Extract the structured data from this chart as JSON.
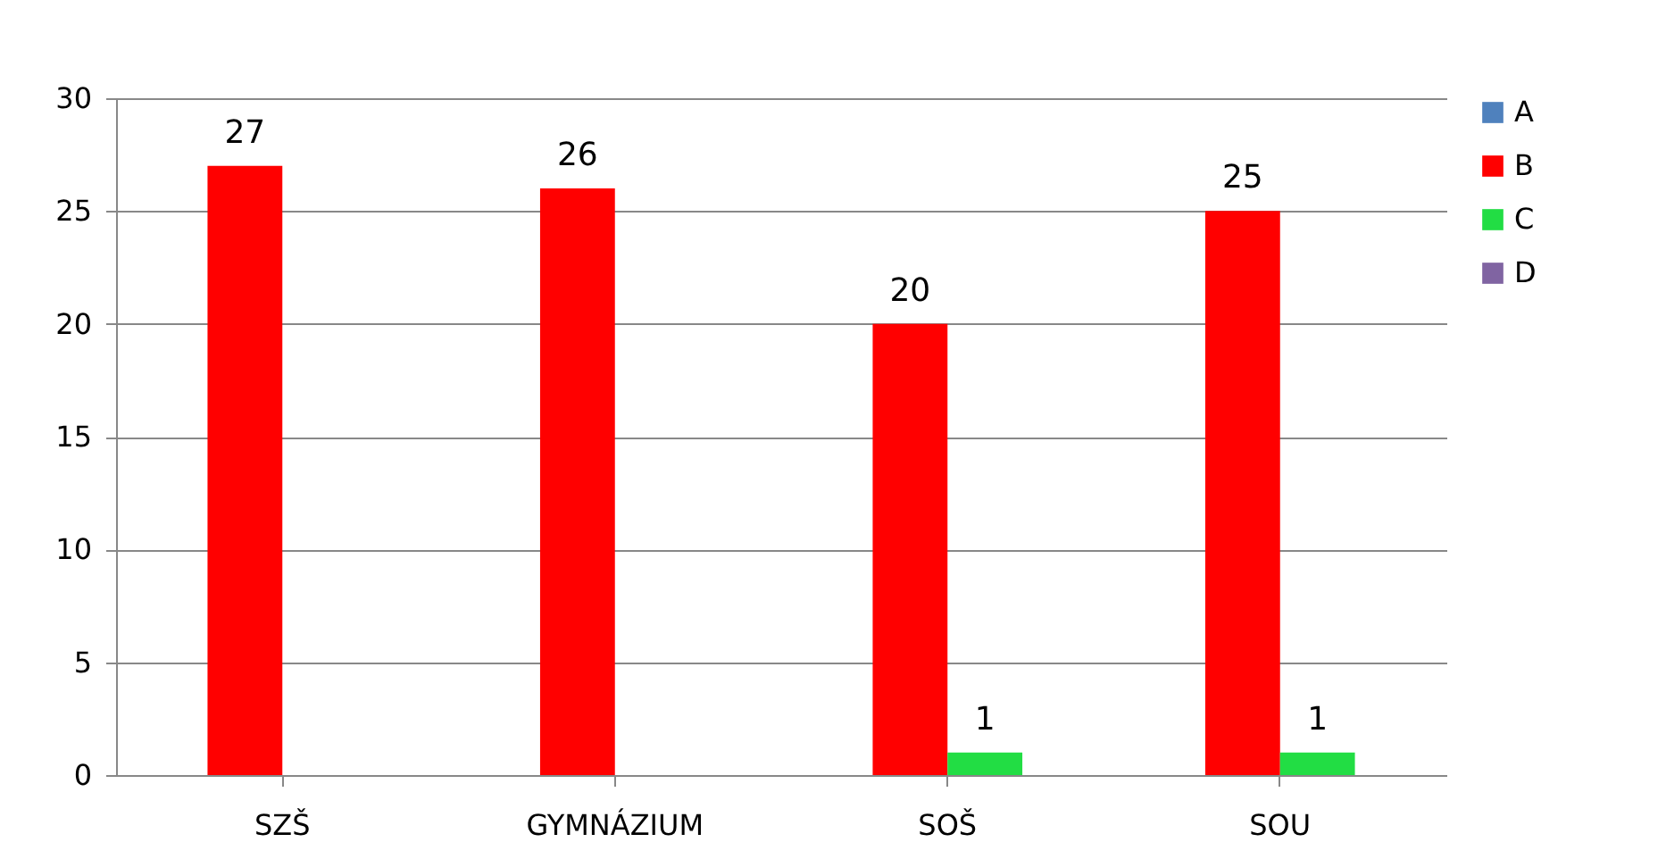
{
  "chart_data": {
    "type": "bar",
    "categories": [
      "SZŠ",
      "GYMNÁZIUM",
      "SOŠ",
      "SOU"
    ],
    "series": [
      {
        "name": "A",
        "color": "#4f81bd",
        "values": [
          0,
          0,
          0,
          0
        ],
        "value_labels": [
          null,
          null,
          null,
          null
        ]
      },
      {
        "name": "B",
        "color": "#ff0000",
        "values": [
          27,
          26,
          20,
          25
        ],
        "value_labels": [
          "27",
          "26",
          "20",
          "25"
        ]
      },
      {
        "name": "C",
        "color": "#22dd44",
        "values": [
          0,
          0,
          1,
          1
        ],
        "value_labels": [
          null,
          null,
          "1",
          "1"
        ]
      },
      {
        "name": "D",
        "color": "#8064a2",
        "values": [
          0,
          0,
          0,
          0
        ],
        "value_labels": [
          null,
          null,
          null,
          null
        ]
      }
    ],
    "ylim": [
      0,
      30
    ],
    "yticks": [
      0,
      5,
      10,
      15,
      20,
      25,
      30
    ],
    "grid": "y",
    "legend": "right"
  }
}
